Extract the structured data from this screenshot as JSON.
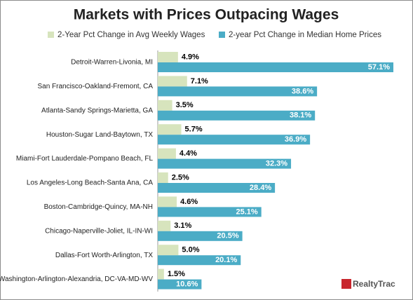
{
  "chart_data": {
    "type": "bar",
    "orientation": "horizontal",
    "title": "Markets with Prices Outpacing Wages",
    "categories": [
      "Detroit-Warren-Livonia, MI",
      "San Francisco-Oakland-Fremont, CA",
      "Atlanta-Sandy Springs-Marietta, GA",
      "Houston-Sugar Land-Baytown, TX",
      "Miami-Fort Lauderdale-Pompano Beach, FL",
      "Los Angeles-Long Beach-Santa Ana, CA",
      "Boston-Cambridge-Quincy, MA-NH",
      "Chicago-Naperville-Joliet, IL-IN-WI",
      "Dallas-Fort Worth-Arlington, TX",
      "Washington-Arlington-Alexandria, DC-VA-MD-WV"
    ],
    "series": [
      {
        "name": "2-Year Pct Change in Avg Weekly Wages",
        "color": "#d7e4bd",
        "label_color": "#000000",
        "values": [
          4.9,
          7.1,
          3.5,
          5.7,
          4.4,
          2.5,
          4.6,
          3.1,
          5.0,
          1.5
        ],
        "value_labels": [
          "4.9%",
          "7.1%",
          "3.5%",
          "5.7%",
          "4.4%",
          "2.5%",
          "4.6%",
          "3.1%",
          "5.0%",
          "1.5%"
        ]
      },
      {
        "name": "2-year Pct Change in Median Home Prices",
        "color": "#4bacc6",
        "label_color": "#ffffff",
        "values": [
          57.1,
          38.6,
          38.1,
          36.9,
          32.3,
          28.4,
          25.1,
          20.5,
          20.1,
          10.6
        ],
        "value_labels": [
          "57.1%",
          "38.6%",
          "38.1%",
          "36.9%",
          "32.3%",
          "28.4%",
          "25.1%",
          "20.5%",
          "20.1%",
          "10.6%"
        ]
      }
    ],
    "source": "RealtyTrac"
  }
}
